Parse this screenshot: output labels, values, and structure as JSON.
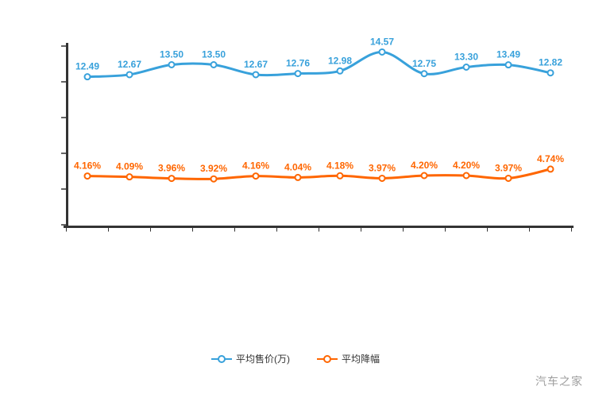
{
  "page": {
    "watermark": "汽车之家",
    "background_color": "#ffffff",
    "axis_color": "#333333",
    "watermark_color": "#9e9e9e"
  },
  "chart_data": {
    "type": "line",
    "smooth": true,
    "point_count": 12,
    "x_axis": {
      "labels_visible": false,
      "boundary_tick_count": 13
    },
    "y_axis": {
      "labels_visible": false,
      "range": [
        0,
        15
      ],
      "tick_count": 6
    },
    "legend_position": "bottom",
    "series": [
      {
        "name": "平均售价(万)",
        "color": "#38A1DB",
        "values": [
          12.49,
          12.67,
          13.5,
          13.5,
          12.67,
          12.76,
          12.98,
          14.57,
          12.75,
          13.3,
          13.49,
          12.82
        ],
        "labels": [
          "12.49",
          "12.67",
          "13.50",
          "13.50",
          "12.67",
          "12.76",
          "12.98",
          "14.57",
          "12.75",
          "13.30",
          "13.49",
          "12.82"
        ]
      },
      {
        "name": "平均降幅",
        "color": "#FF6600",
        "values": [
          4.16,
          4.09,
          3.96,
          3.92,
          4.16,
          4.04,
          4.18,
          3.97,
          4.2,
          4.2,
          3.97,
          4.74
        ],
        "labels": [
          "4.16%",
          "4.09%",
          "3.96%",
          "3.92%",
          "4.16%",
          "4.04%",
          "4.18%",
          "3.97%",
          "4.20%",
          "4.20%",
          "3.97%",
          "4.74%"
        ]
      }
    ]
  }
}
